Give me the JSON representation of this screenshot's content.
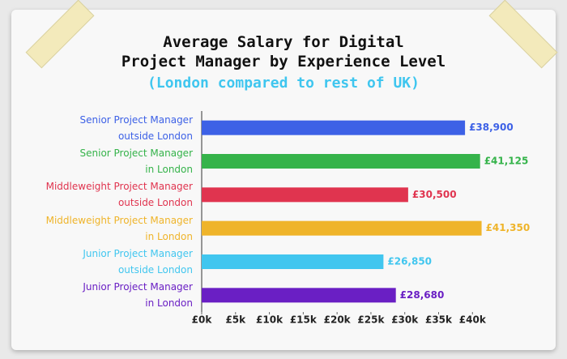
{
  "chart_data": {
    "type": "bar",
    "orientation": "horizontal",
    "title": "Average Salary for Digital\nProject Manager by Experience Level",
    "subtitle": "(London compared to rest of UK)",
    "categories": [
      "Senior Project Manager\noutside London",
      "Senior Project Manager\nin London",
      "Middleweight Project Manager\noutside London",
      "Middleweight Project Manager\nin London",
      "Junior Project Manager\noutside London",
      "Junior Project Manager\nin London"
    ],
    "values": [
      38900,
      41125,
      30500,
      41350,
      26850,
      28680
    ],
    "value_labels": [
      "£38,900",
      "£41,125",
      "£30,500",
      "£41,350",
      "£26,850",
      "£28,680"
    ],
    "colors": [
      "#3d61e6",
      "#35b34a",
      "#e0344f",
      "#efb42a",
      "#41c6ef",
      "#6a1fc4"
    ],
    "xlim": [
      0,
      42000
    ],
    "xticks": [
      {
        "value": 0,
        "label": "£0k"
      },
      {
        "value": 5000,
        "label": "£5k"
      },
      {
        "value": 10000,
        "label": "£10k"
      },
      {
        "value": 15000,
        "label": "£15k"
      },
      {
        "value": 20000,
        "label": "£20k"
      },
      {
        "value": 25000,
        "label": "£25k"
      },
      {
        "value": 30000,
        "label": "£30k"
      },
      {
        "value": 35000,
        "label": "£35k"
      },
      {
        "value": 40000,
        "label": "£40k"
      }
    ]
  }
}
